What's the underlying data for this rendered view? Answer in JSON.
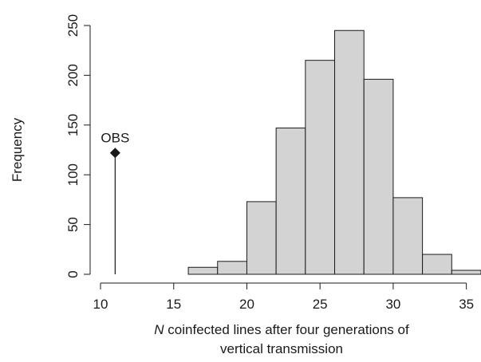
{
  "chart_data": {
    "type": "bar",
    "subtype": "histogram",
    "bins": [
      {
        "start": 16,
        "end": 18,
        "count": 7
      },
      {
        "start": 18,
        "end": 20,
        "count": 13
      },
      {
        "start": 20,
        "end": 22,
        "count": 73
      },
      {
        "start": 22,
        "end": 24,
        "count": 147
      },
      {
        "start": 24,
        "end": 26,
        "count": 215
      },
      {
        "start": 26,
        "end": 28,
        "count": 245
      },
      {
        "start": 28,
        "end": 30,
        "count": 196
      },
      {
        "start": 30,
        "end": 32,
        "count": 77
      },
      {
        "start": 32,
        "end": 34,
        "count": 20
      },
      {
        "start": 34,
        "end": 36,
        "count": 4
      }
    ],
    "bar_color": "#d3d3d3",
    "observed": {
      "label": "OBS",
      "x": 11,
      "y": 122
    },
    "xlabel_italic": "N",
    "xlabel_rest": " coinfected lines after four generations of",
    "xlabel_line2": "vertical transmission",
    "ylabel": "Frequency",
    "xlim": [
      10,
      36
    ],
    "ylim": [
      0,
      250
    ],
    "x_ticks": [
      "10",
      "15",
      "20",
      "25",
      "30",
      "35"
    ],
    "y_ticks": [
      "0",
      "50",
      "100",
      "150",
      "200",
      "250"
    ],
    "grid": false,
    "legend": "none"
  }
}
